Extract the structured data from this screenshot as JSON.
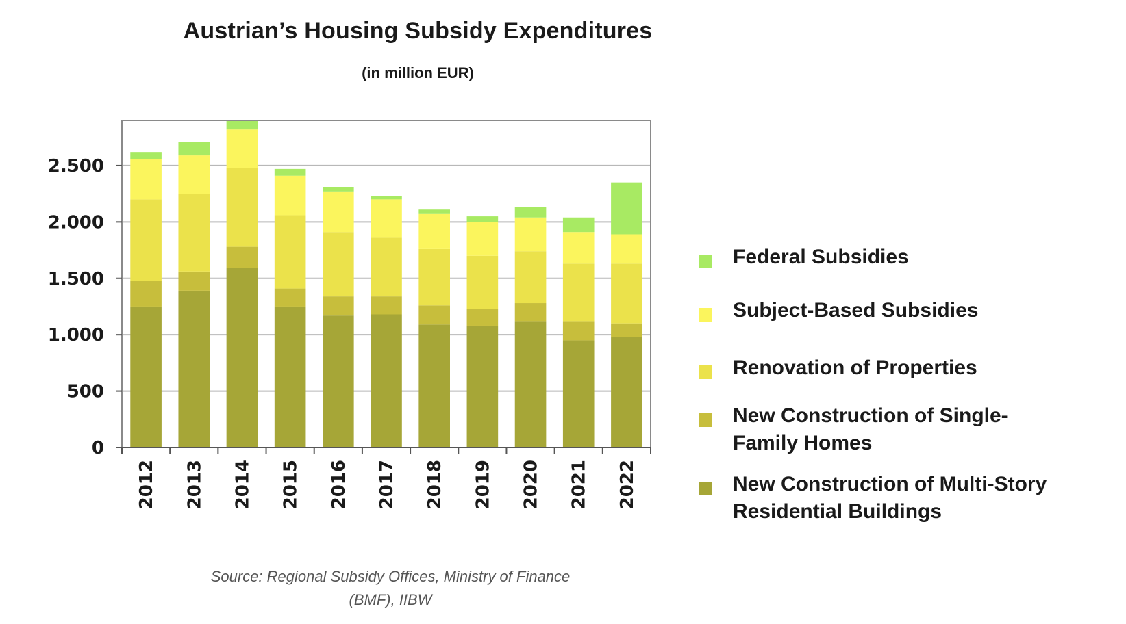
{
  "chart_data": {
    "type": "bar",
    "stacked": true,
    "title": "Austrian’s Housing Subsidy Expenditures",
    "subtitle": "(in million EUR)",
    "xlabel": "",
    "ylabel": "",
    "ylim": [
      0,
      2900
    ],
    "yticks": [
      0,
      500,
      1000,
      1500,
      2000,
      2500
    ],
    "ytick_labels": [
      "0",
      "500",
      "1.000",
      "1.500",
      "2.000",
      "2.500"
    ],
    "grid": true,
    "legend_position": "right",
    "categories": [
      "2012",
      "2013",
      "2014",
      "2015",
      "2016",
      "2017",
      "2018",
      "2019",
      "2020",
      "2021",
      "2022"
    ],
    "series": [
      {
        "name": "New Construction of Multi-Story Residential Buildings",
        "color": "#a6a637",
        "values": [
          1250,
          1390,
          1590,
          1250,
          1170,
          1180,
          1090,
          1080,
          1120,
          950,
          980
        ]
      },
      {
        "name": "New Construction of Single-Family Homes",
        "color": "#c7be3c",
        "values": [
          230,
          170,
          190,
          160,
          170,
          160,
          170,
          150,
          160,
          170,
          120
        ]
      },
      {
        "name": "Renovation of Properties",
        "color": "#ebe24b",
        "values": [
          720,
          690,
          700,
          650,
          570,
          520,
          500,
          470,
          460,
          510,
          530
        ]
      },
      {
        "name": "Subject-Based Subsidies",
        "color": "#fbf55d",
        "values": [
          360,
          340,
          340,
          350,
          360,
          340,
          310,
          300,
          300,
          280,
          260
        ]
      },
      {
        "name": "Federal Subsidies",
        "color": "#a8ea63",
        "values": [
          60,
          120,
          80,
          60,
          40,
          30,
          40,
          50,
          90,
          130,
          460
        ]
      }
    ],
    "legend_order": [
      "Federal Subsidies",
      "Subject-Based Subsidies",
      "Renovation of Properties",
      "New Construction of Single-Family Homes",
      "New Construction of Multi-Story Residential Buildings"
    ],
    "source": "Source: Regional Subsidy Offices, Ministry of Finance (BMF), IIBW",
    "colors": {
      "frame": "#8a8a8a",
      "grid": "#b8b8b8",
      "axis": "#555555"
    }
  }
}
